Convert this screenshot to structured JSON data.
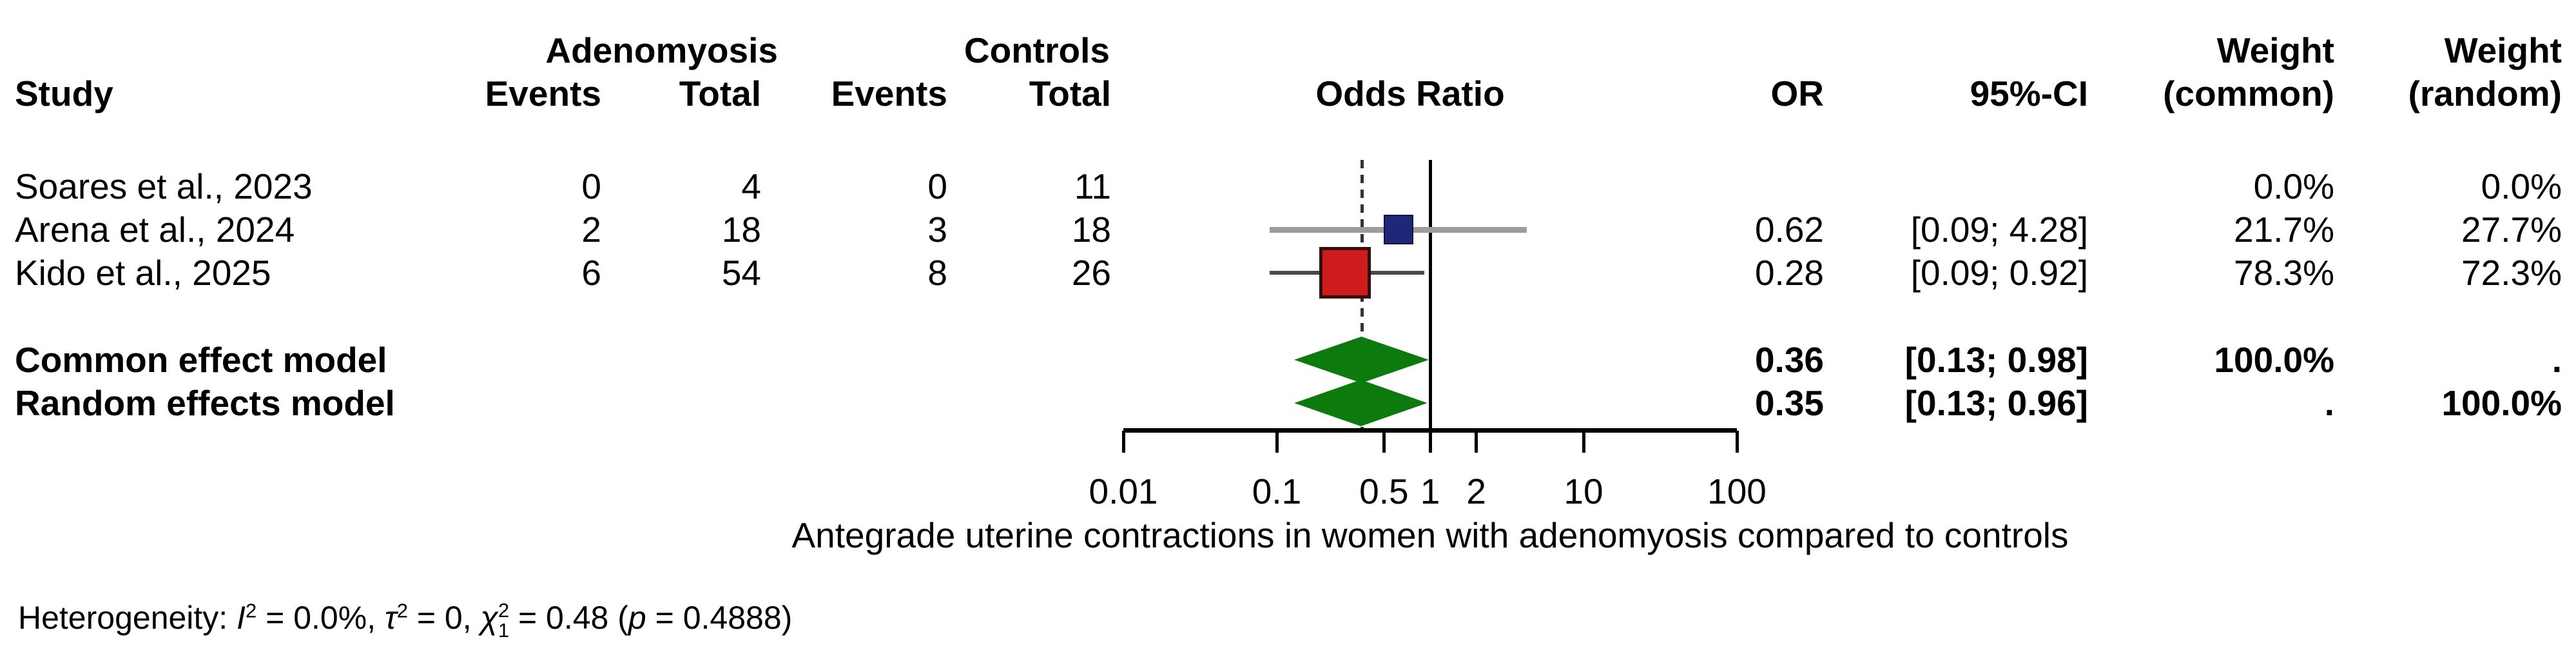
{
  "header": {
    "study": "Study",
    "group_adenomyosis": "Adenomyosis",
    "group_controls": "Controls",
    "events_adeno": "Events",
    "total_adeno": "Total",
    "events_ctrl": "Events",
    "total_ctrl": "Total",
    "odds_ratio": "Odds Ratio",
    "or": "OR",
    "ci": "95%-CI",
    "weight_common_line1": "Weight",
    "weight_common_line2": "(common)",
    "weight_random_line1": "Weight",
    "weight_random_line2": "(random)"
  },
  "studies": [
    {
      "name": "Soares et al., 2023",
      "e1": "0",
      "n1": "4",
      "e2": "0",
      "n2": "11",
      "or": "",
      "ci": "",
      "wc": "0.0%",
      "wr": "0.0%"
    },
    {
      "name": "Arena et al., 2024",
      "e1": "2",
      "n1": "18",
      "e2": "3",
      "n2": "18",
      "or": "0.62",
      "ci": "[0.09; 4.28]",
      "wc": "21.7%",
      "wr": "27.7%"
    },
    {
      "name": "Kido et al., 2025",
      "e1": "6",
      "n1": "54",
      "e2": "8",
      "n2": "26",
      "or": "0.28",
      "ci": "[0.09; 0.92]",
      "wc": "78.3%",
      "wr": "72.3%"
    }
  ],
  "models": [
    {
      "name": "Common effect model",
      "or": "0.36",
      "ci": "[0.13; 0.98]",
      "wc": "100.0%",
      "wr": "."
    },
    {
      "name": "Random effects model",
      "or": "0.35",
      "ci": "[0.13; 0.96]",
      "wc": ".",
      "wr": "100.0%"
    }
  ],
  "axis": {
    "caption": "Antegrade uterine contractions in women with adenomyosis compared to controls"
  },
  "heterogeneity_segments": [
    {
      "t": "Heterogeneity: "
    },
    {
      "t": "I",
      "i": true
    },
    {
      "t": "2",
      "sup": true
    },
    {
      "t": " = 0.0%, "
    },
    {
      "t": "τ",
      "i": true
    },
    {
      "t": "2",
      "sup": true
    },
    {
      "t": " = 0, "
    },
    {
      "t": "χ",
      "i": true
    },
    {
      "stack": true,
      "sup": "2",
      "sub": "1"
    },
    {
      "t": " = 0.48 ("
    },
    {
      "t": "p",
      "i": true
    },
    {
      "t": " = 0.4888)"
    }
  ],
  "chart_data": {
    "type": "forest",
    "xscale": "log",
    "xticks": [
      0.01,
      0.1,
      0.5,
      1,
      2,
      10,
      100
    ],
    "xtick_labels": [
      "0.01",
      "0.1",
      "0.5",
      "1",
      "2",
      "10",
      "100"
    ],
    "ref_line": 1,
    "summary_dashed_line": 0.36,
    "xlabel": "Antegrade uterine contractions in women with adenomyosis compared to controls",
    "studies": [
      {
        "label": "Soares et al., 2023",
        "events_adenomyosis": 0,
        "total_adenomyosis": 4,
        "events_controls": 0,
        "total_controls": 11,
        "or": null,
        "ci_low": null,
        "ci_high": null,
        "weight_common": 0.0,
        "weight_random": 0.0
      },
      {
        "label": "Arena et al., 2024",
        "events_adenomyosis": 2,
        "total_adenomyosis": 18,
        "events_controls": 3,
        "total_controls": 18,
        "or": 0.62,
        "ci_low": 0.09,
        "ci_high": 4.28,
        "weight_common": 21.7,
        "weight_random": 27.7
      },
      {
        "label": "Kido et al., 2025",
        "events_adenomyosis": 6,
        "total_adenomyosis": 54,
        "events_controls": 8,
        "total_controls": 26,
        "or": 0.28,
        "ci_low": 0.09,
        "ci_high": 0.92,
        "weight_common": 78.3,
        "weight_random": 72.3
      }
    ],
    "models": [
      {
        "label": "Common effect model",
        "or": 0.36,
        "ci_low": 0.13,
        "ci_high": 0.98,
        "weight_common": 100.0,
        "weight_random": null
      },
      {
        "label": "Random effects model",
        "or": 0.35,
        "ci_low": 0.13,
        "ci_high": 0.96,
        "weight_common": null,
        "weight_random": 100.0
      }
    ],
    "heterogeneity": {
      "I2": "0.0%",
      "tau2": 0,
      "chi2": 0.48,
      "df": 1,
      "p": 0.4888
    },
    "colors": {
      "square_arena": "#1f2878",
      "square_arena_border": "#10173f",
      "square_kido": "#ce1c1c",
      "square_kido_border": "#380d0d",
      "diamond_green": "#0d7a0d",
      "ci_line_light": "#9c9c9c",
      "ci_line_dark": "#4a4a4a",
      "axis_black": "#000000",
      "dashed_line": "#333333"
    }
  }
}
